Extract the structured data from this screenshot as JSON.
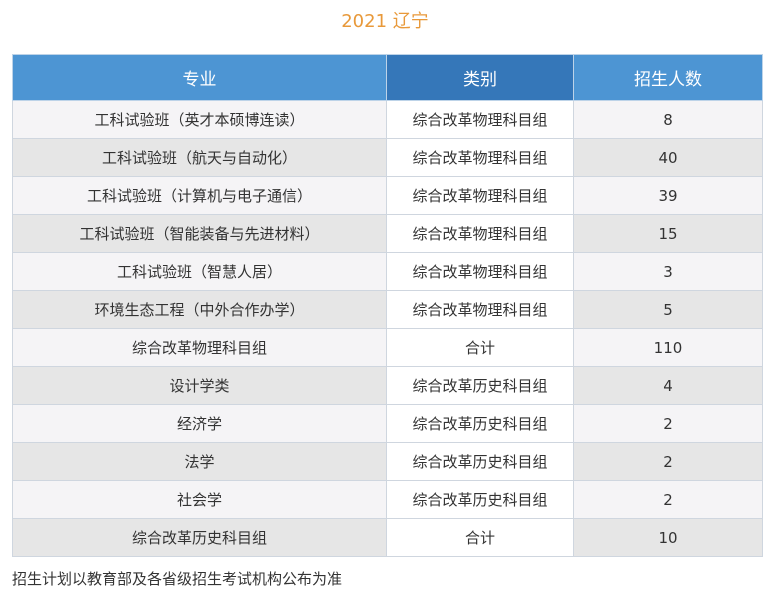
{
  "title": "2021 辽宁",
  "table": {
    "headers": [
      "专业",
      "类别",
      "招生人数"
    ],
    "rows": [
      {
        "major": "工科试验班（英才本硕博连读）",
        "category": "综合改革物理科目组",
        "count": "8"
      },
      {
        "major": "工科试验班（航天与自动化）",
        "category": "综合改革物理科目组",
        "count": "40"
      },
      {
        "major": "工科试验班（计算机与电子通信）",
        "category": "综合改革物理科目组",
        "count": "39"
      },
      {
        "major": "工科试验班（智能装备与先进材料）",
        "category": "综合改革物理科目组",
        "count": "15"
      },
      {
        "major": "工科试验班（智慧人居）",
        "category": "综合改革物理科目组",
        "count": "3"
      },
      {
        "major": "环境生态工程（中外合作办学）",
        "category": "综合改革物理科目组",
        "count": "5"
      },
      {
        "major": "综合改革物理科目组",
        "category": "合计",
        "count": "110"
      },
      {
        "major": "设计学类",
        "category": "综合改革历史科目组",
        "count": "4"
      },
      {
        "major": "经济学",
        "category": "综合改革历史科目组",
        "count": "2"
      },
      {
        "major": "法学",
        "category": "综合改革历史科目组",
        "count": "2"
      },
      {
        "major": "社会学",
        "category": "综合改革历史科目组",
        "count": "2"
      },
      {
        "major": "综合改革历史科目组",
        "category": "合计",
        "count": "10"
      }
    ]
  },
  "note": "招生计划以教育部及各省级招生考试机构公布为准",
  "colors": {
    "title": "#e8993a",
    "header": "#4d95d3",
    "header_mid": "#3577b9",
    "row_light": "#f5f4f6",
    "row_dark": "#e6e6e6"
  }
}
